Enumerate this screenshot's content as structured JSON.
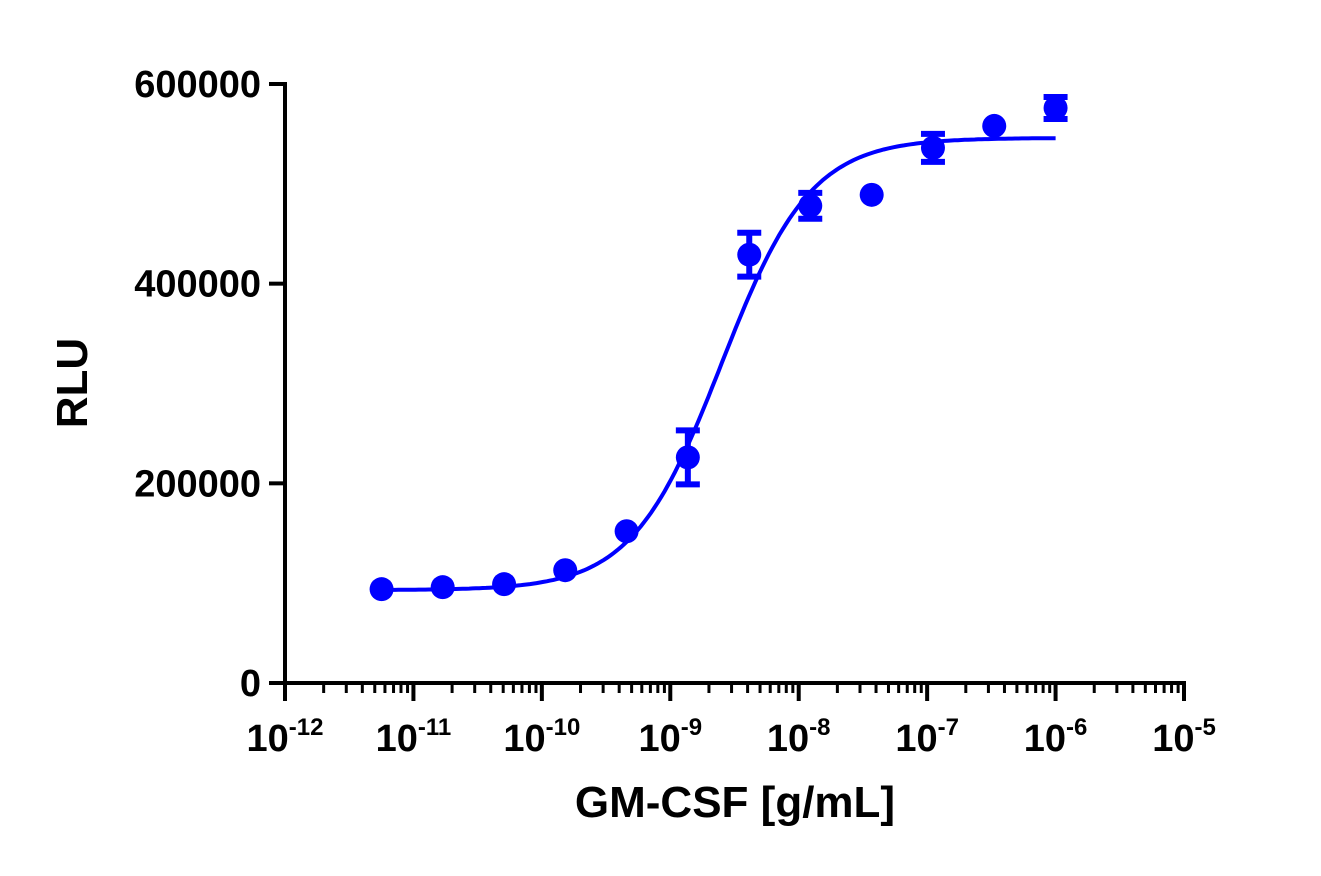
{
  "chart_data": {
    "type": "scatter",
    "title": "",
    "xlabel": "GM-CSF [g/mL]",
    "ylabel": "RLU",
    "xscale": "log",
    "xlim": [
      1e-12,
      1e-05
    ],
    "ylim": [
      0,
      600000
    ],
    "grid": false,
    "legend": "none",
    "x_ticks": [
      {
        "base": "10",
        "exp": "-12",
        "value": 1e-12
      },
      {
        "base": "10",
        "exp": "-11",
        "value": 1e-11
      },
      {
        "base": "10",
        "exp": "-10",
        "value": 1e-10
      },
      {
        "base": "10",
        "exp": "-9",
        "value": 1e-09
      },
      {
        "base": "10",
        "exp": "-8",
        "value": 1e-08
      },
      {
        "base": "10",
        "exp": "-7",
        "value": 1e-07
      },
      {
        "base": "10",
        "exp": "-6",
        "value": 1e-06
      },
      {
        "base": "10",
        "exp": "-5",
        "value": 1e-05
      }
    ],
    "y_ticks": [
      {
        "label": "0",
        "value": 0
      },
      {
        "label": "200000",
        "value": 200000
      },
      {
        "label": "400000",
        "value": 400000
      },
      {
        "label": "600000",
        "value": 600000
      }
    ],
    "color": "#0000ff",
    "points": [
      {
        "x": 5.65e-12,
        "y": 94000,
        "err": 0
      },
      {
        "x": 1.69e-11,
        "y": 96000,
        "err": 0
      },
      {
        "x": 5.08e-11,
        "y": 99000,
        "err": 0
      },
      {
        "x": 1.52e-10,
        "y": 113000,
        "err": 0
      },
      {
        "x": 4.57e-10,
        "y": 152000,
        "err": 0
      },
      {
        "x": 1.37e-09,
        "y": 226000,
        "err": 27000
      },
      {
        "x": 4.12e-09,
        "y": 429000,
        "err": 22000
      },
      {
        "x": 1.23e-08,
        "y": 478000,
        "err": 13000
      },
      {
        "x": 3.7e-08,
        "y": 489000,
        "err": 0
      },
      {
        "x": 1.11e-07,
        "y": 536000,
        "err": 14000
      },
      {
        "x": 3.33e-07,
        "y": 558000,
        "err": 0
      },
      {
        "x": 1e-06,
        "y": 576000,
        "err": 11000
      }
    ],
    "fit": {
      "model": "4PL",
      "bottom": 93000,
      "top": 546000,
      "ec50": 2.5e-09,
      "hill": 1.25,
      "x_range": [
        5.65e-12,
        1e-06
      ]
    }
  }
}
